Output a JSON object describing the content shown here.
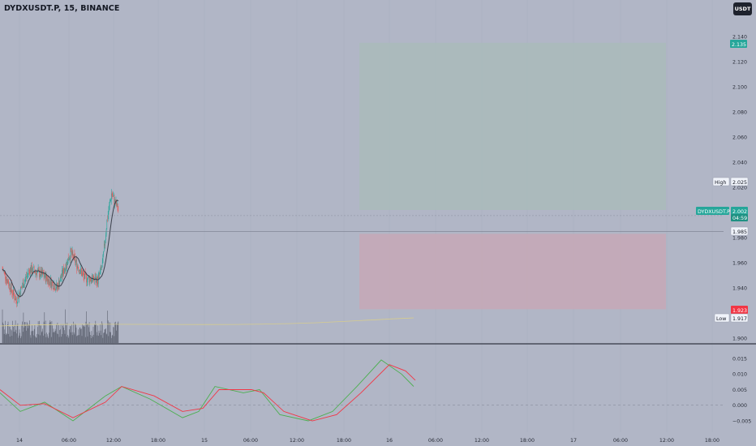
{
  "header": {
    "title": "DYDXUSDT.P, 15, BINANCE",
    "currency": "USDT"
  },
  "colors": {
    "background": "#b1b6c6",
    "up": "#26a69a",
    "down": "#ef5350",
    "ma": "#3a3f4a",
    "reward_zone": "#a8bcb8",
    "risk_zone": "#c7a8b6",
    "macd_green": "#4caf50",
    "macd_red": "#f23645",
    "volume": "#5d6270",
    "volume_ma": "#d6cc8f"
  },
  "price_axis": {
    "min": 1.9,
    "max": 2.14,
    "ticks": [
      "2.140",
      "2.120",
      "2.100",
      "2.080",
      "2.060",
      "2.040",
      "2.020",
      "1.980",
      "1.960",
      "1.940",
      "1.900"
    ]
  },
  "labels": {
    "target": "2.135",
    "high_word": "High",
    "high": "2.025",
    "symbol": "DYDXUSDT.P",
    "last": "2.002",
    "countdown": "04:59",
    "line_price": "1.985",
    "stop": "1.923",
    "low_word": "Low",
    "low": "1.917"
  },
  "oscillator_axis": {
    "ticks": [
      "0.015",
      "0.010",
      "0.005",
      "0.000",
      "−0.005"
    ]
  },
  "time_axis": {
    "ticks": [
      "14",
      "06:00",
      "12:00",
      "18:00",
      "15",
      "06:00",
      "12:00",
      "18:00",
      "16",
      "06:00",
      "12:00",
      "18:00",
      "17",
      "06:00",
      "12:00",
      "18:00"
    ]
  },
  "chart_data": {
    "type": "line",
    "title": "DYDXUSDT.P, 15, BINANCE",
    "interval_minutes": 15,
    "price_series": [
      {
        "time": "14 00:00",
        "close": 1.955
      },
      {
        "time": "14 06:00",
        "close": 1.93
      },
      {
        "time": "14 12:00",
        "close": 1.955
      },
      {
        "time": "14 18:00",
        "close": 1.95
      },
      {
        "time": "15 00:00",
        "close": 1.94
      },
      {
        "time": "15 06:00",
        "close": 1.968
      },
      {
        "time": "15 12:00",
        "close": 1.948
      },
      {
        "time": "15 18:00",
        "close": 1.946
      },
      {
        "time": "15 20:00",
        "close": 1.958
      },
      {
        "time": "15 22:00",
        "close": 1.993
      },
      {
        "time": "16 00:00",
        "close": 2.015
      },
      {
        "time": "16 03:00",
        "close": 2.002
      }
    ],
    "position": {
      "target": 2.135,
      "entry": 2.002,
      "stop": 1.923
    },
    "reference_line": 1.985,
    "high": 2.025,
    "low": 1.917,
    "oscillator_range": [
      -0.009,
      0.017
    ]
  }
}
